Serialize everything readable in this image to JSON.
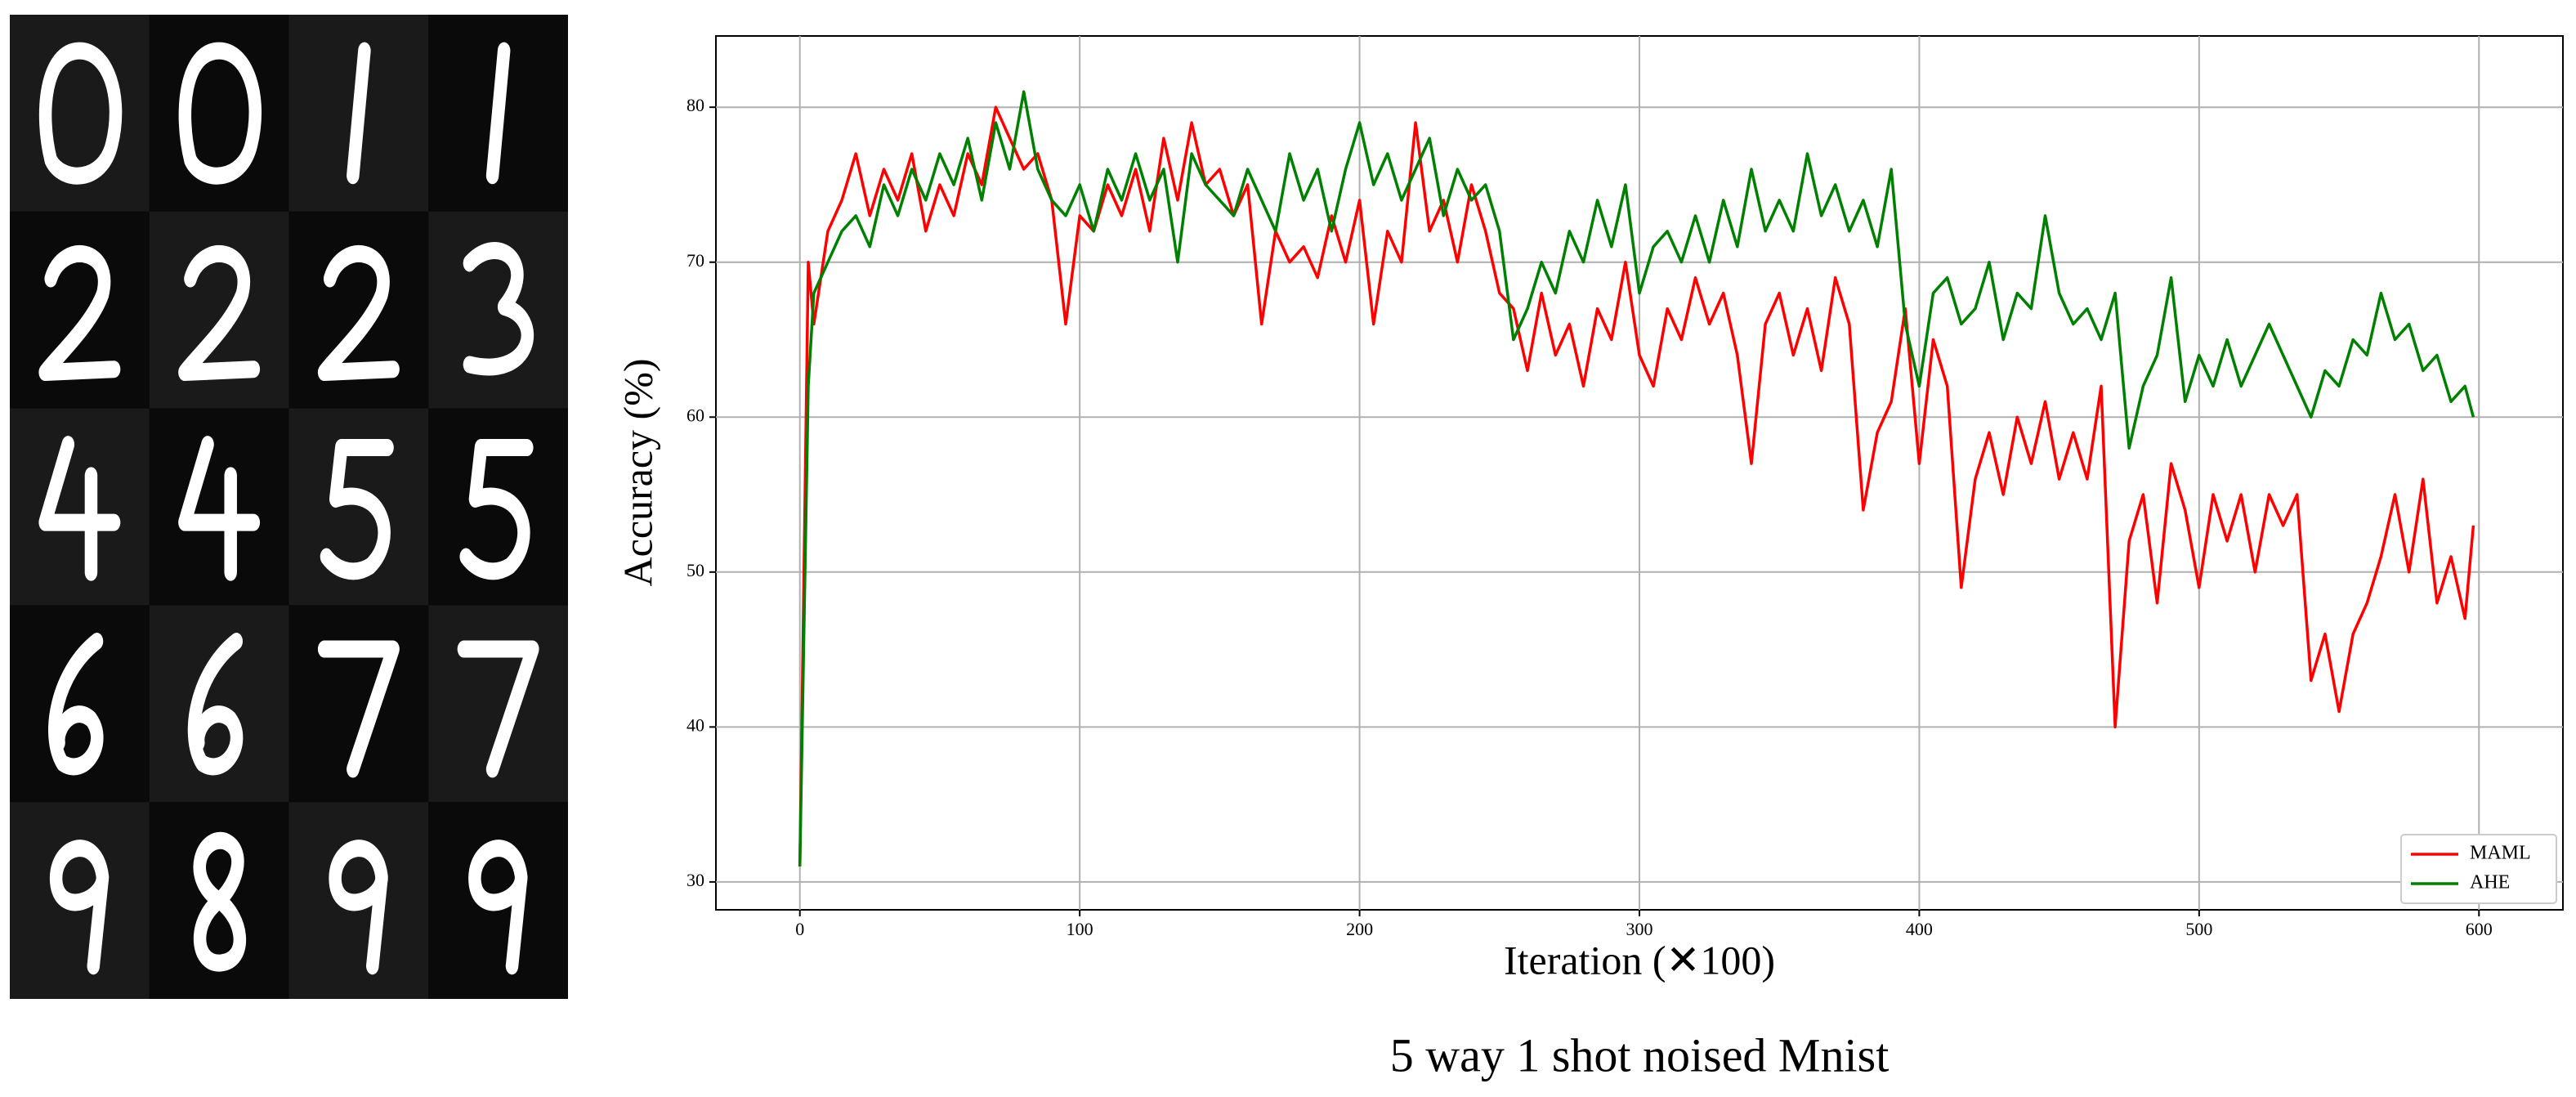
{
  "chart_data": {
    "type": "line",
    "caption": "5 way 1 shot noised Mnist",
    "x_label": "Iteration (✕100)",
    "y_label": "Accuracy (%)",
    "xlim": [
      -30,
      630
    ],
    "ylim": [
      28.2,
      84.6
    ],
    "xticks": [
      0,
      100,
      200,
      300,
      400,
      500,
      600
    ],
    "yticks": [
      30,
      40,
      50,
      60,
      70,
      80
    ],
    "grid": true,
    "legend": "lower right",
    "x": [
      0,
      3,
      5,
      10,
      15,
      20,
      25,
      30,
      35,
      40,
      45,
      50,
      55,
      60,
      65,
      70,
      75,
      80,
      85,
      90,
      95,
      100,
      105,
      110,
      115,
      120,
      125,
      130,
      135,
      140,
      145,
      150,
      155,
      160,
      165,
      170,
      175,
      180,
      185,
      190,
      195,
      200,
      205,
      210,
      215,
      220,
      225,
      230,
      235,
      240,
      245,
      250,
      255,
      260,
      265,
      270,
      275,
      280,
      285,
      290,
      295,
      300,
      305,
      310,
      315,
      320,
      325,
      330,
      335,
      340,
      345,
      350,
      355,
      360,
      365,
      370,
      375,
      380,
      385,
      390,
      395,
      400,
      405,
      410,
      415,
      420,
      425,
      430,
      435,
      440,
      445,
      450,
      455,
      460,
      465,
      470,
      475,
      480,
      485,
      490,
      495,
      500,
      505,
      510,
      515,
      520,
      525,
      530,
      535,
      540,
      545,
      550,
      555,
      560,
      565,
      570,
      575,
      580,
      585,
      590,
      595,
      598
    ],
    "series": [
      {
        "name": "MAML",
        "color": "#ff0000",
        "values": [
          31,
          70,
          66,
          72,
          74,
          77,
          73,
          76,
          74,
          77,
          72,
          75,
          73,
          77,
          75,
          80,
          78,
          76,
          77,
          74,
          66,
          73,
          72,
          75,
          73,
          76,
          72,
          78,
          74,
          79,
          75,
          76,
          73,
          75,
          66,
          72,
          70,
          71,
          69,
          73,
          70,
          74,
          66,
          72,
          70,
          79,
          72,
          74,
          70,
          75,
          72,
          68,
          67,
          63,
          68,
          64,
          66,
          62,
          67,
          65,
          70,
          64,
          62,
          67,
          65,
          69,
          66,
          68,
          64,
          57,
          66,
          68,
          64,
          67,
          63,
          69,
          66,
          54,
          59,
          61,
          67,
          57,
          65,
          62,
          49,
          56,
          59,
          55,
          60,
          57,
          61,
          56,
          59,
          56,
          62,
          40,
          52,
          55,
          48,
          57,
          54,
          49,
          55,
          52,
          55,
          50,
          55,
          53,
          55,
          43,
          46,
          41,
          46,
          48,
          51,
          55,
          50,
          56,
          48,
          51,
          47,
          53
        ]
      },
      {
        "name": "AHE",
        "color": "#008000",
        "values": [
          31,
          62,
          68,
          70,
          72,
          73,
          71,
          75,
          73,
          76,
          74,
          77,
          75,
          78,
          74,
          79,
          76,
          81,
          76,
          74,
          73,
          75,
          72,
          76,
          74,
          77,
          74,
          76,
          70,
          77,
          75,
          74,
          73,
          76,
          74,
          72,
          77,
          74,
          76,
          72,
          76,
          79,
          75,
          77,
          74,
          76,
          78,
          73,
          76,
          74,
          75,
          72,
          65,
          67,
          70,
          68,
          72,
          70,
          74,
          71,
          75,
          68,
          71,
          72,
          70,
          73,
          70,
          74,
          71,
          76,
          72,
          74,
          72,
          77,
          73,
          75,
          72,
          74,
          71,
          76,
          66,
          62,
          68,
          69,
          66,
          67,
          70,
          65,
          68,
          67,
          73,
          68,
          66,
          67,
          65,
          68,
          58,
          62,
          64,
          69,
          61,
          64,
          62,
          65,
          62,
          64,
          66,
          64,
          62,
          60,
          63,
          62,
          65,
          64,
          68,
          65,
          66,
          63,
          64,
          61,
          62,
          60
        ]
      }
    ]
  }
}
